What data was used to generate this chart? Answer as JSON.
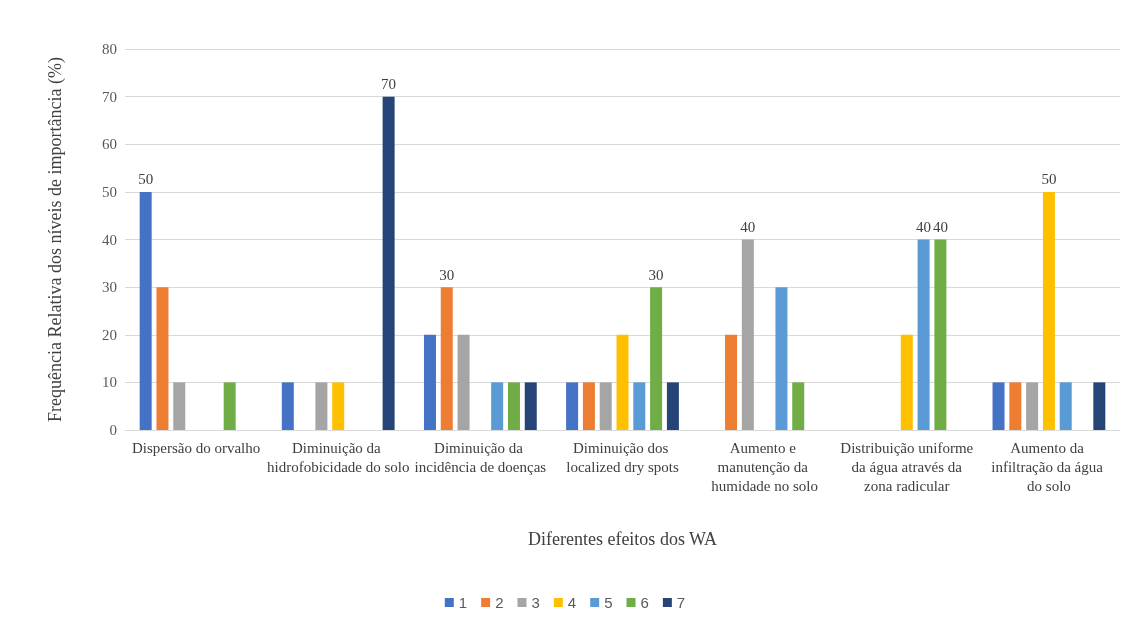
{
  "chart_data": {
    "type": "bar",
    "xlabel": "Diferentes efeitos dos WA",
    "ylabel": "Frequência Relativa dos níveis de importância (%)",
    "categories": [
      "Dispersão do orvalho",
      "Diminuição da hidrofobicidade do solo",
      "Diminuição da incidência de doenças",
      "Diminuição dos localized dry spots",
      "Aumento e manutenção da humidade no solo",
      "Distribuição uniforme da água através da zona radicular",
      "Aumento da infiltração da água do solo"
    ],
    "series": [
      {
        "name": "1",
        "color": "#4472c4",
        "values": [
          50,
          10,
          20,
          10,
          0,
          0,
          10
        ],
        "value_labels": [
          "50",
          null,
          null,
          null,
          null,
          null,
          null
        ]
      },
      {
        "name": "2",
        "color": "#ed7d31",
        "values": [
          30,
          0,
          30,
          10,
          20,
          0,
          10
        ],
        "value_labels": [
          null,
          null,
          "30",
          null,
          null,
          null,
          null
        ]
      },
      {
        "name": "3",
        "color": "#a5a5a5",
        "values": [
          10,
          10,
          20,
          10,
          40,
          0,
          10
        ],
        "value_labels": [
          null,
          null,
          null,
          null,
          "40",
          null,
          null
        ]
      },
      {
        "name": "4",
        "color": "#ffc000",
        "values": [
          0,
          10,
          0,
          20,
          0,
          20,
          50
        ],
        "value_labels": [
          null,
          null,
          null,
          null,
          null,
          null,
          "50"
        ]
      },
      {
        "name": "5",
        "color": "#5b9bd5",
        "values": [
          0,
          0,
          10,
          10,
          30,
          40,
          10
        ],
        "value_labels": [
          null,
          null,
          null,
          null,
          null,
          "40",
          null
        ]
      },
      {
        "name": "6",
        "color": "#70ad47",
        "values": [
          10,
          0,
          10,
          30,
          10,
          40,
          0
        ],
        "value_labels": [
          null,
          null,
          null,
          "30",
          null,
          "40",
          null
        ]
      },
      {
        "name": "7",
        "color": "#264478",
        "values": [
          0,
          70,
          10,
          10,
          0,
          0,
          10
        ],
        "value_labels": [
          null,
          "70",
          null,
          null,
          null,
          null,
          null
        ]
      }
    ],
    "ylim": [
      0,
      80
    ],
    "yticks": [
      0,
      10,
      20,
      30,
      40,
      50,
      60,
      70,
      80
    ],
    "grid": "y",
    "legend": "bottom"
  }
}
